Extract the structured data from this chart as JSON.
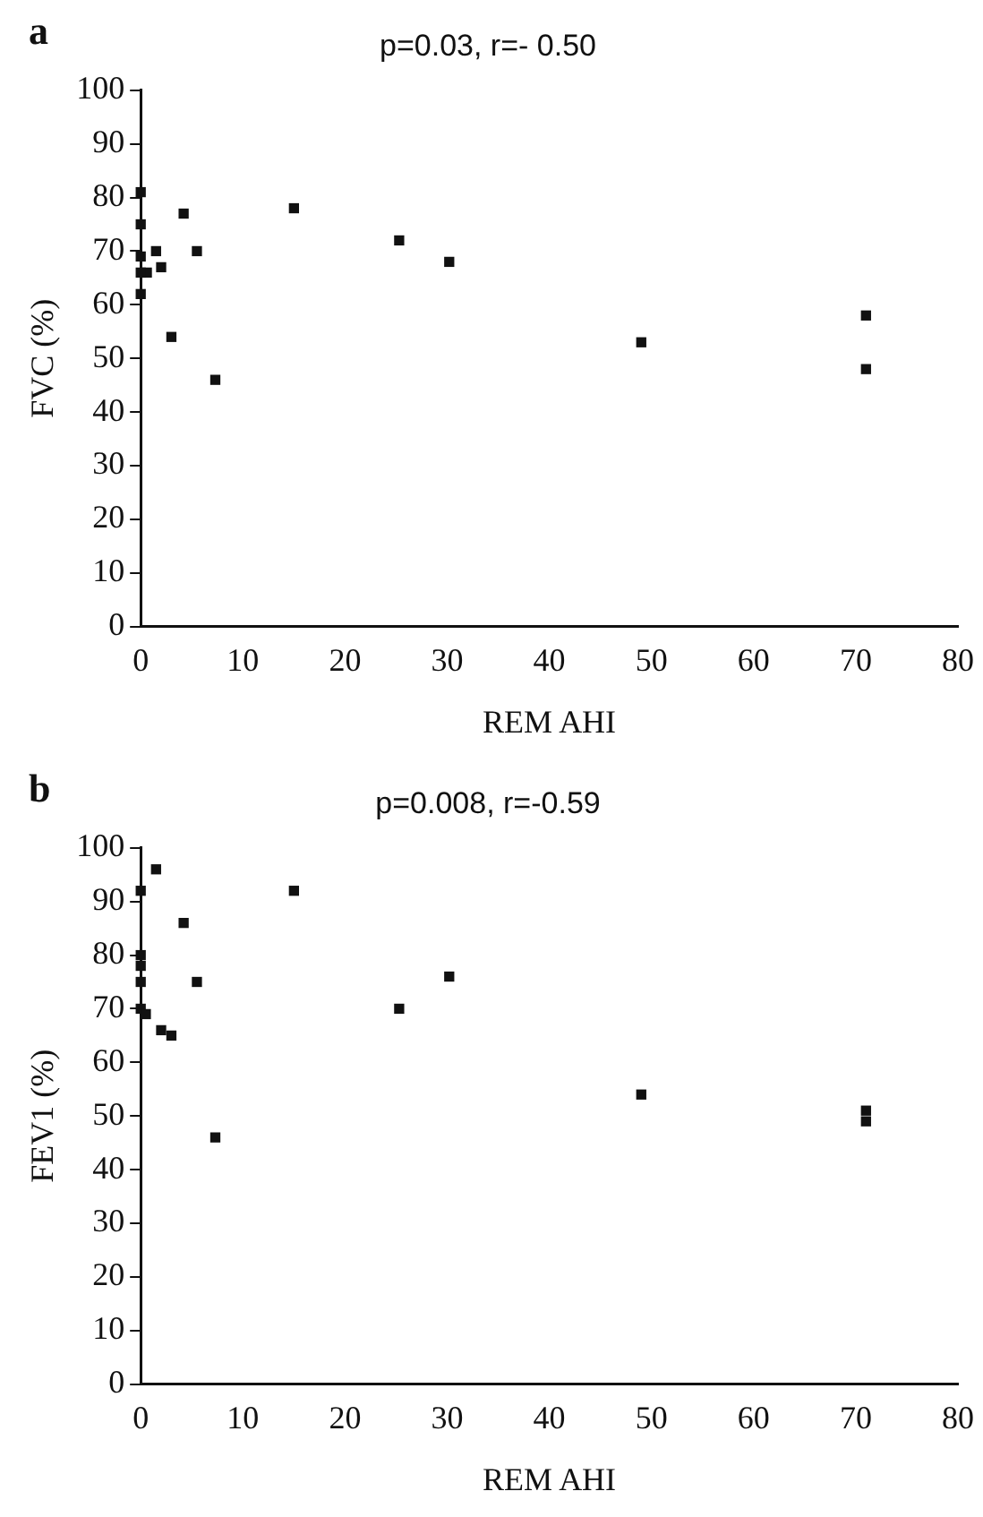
{
  "chart_data": [
    {
      "type": "scatter",
      "title": "p=0.03, r=- 0.50",
      "xlabel": "REM AHI",
      "ylabel": "FVC (%)",
      "annotations": [
        "a"
      ],
      "marker": "square",
      "grid": false,
      "legend": false,
      "xlim": [
        0,
        80
      ],
      "xticks": [
        0,
        10,
        20,
        30,
        40,
        50,
        60,
        70,
        80
      ],
      "ylim": [
        0,
        100
      ],
      "yticks": [
        0,
        10,
        20,
        30,
        40,
        50,
        60,
        70,
        80,
        90,
        100
      ],
      "series": [
        {
          "color": "#111111",
          "x": [
            0.6,
            0,
            0,
            0,
            0,
            0,
            1.5,
            2,
            3,
            4.2,
            5.5,
            7.3,
            15,
            25.3,
            30.2,
            49,
            71,
            71
          ],
          "values": [
            66,
            81,
            75,
            69,
            66,
            62,
            70,
            67,
            54,
            77,
            70,
            46,
            78,
            72,
            68,
            53,
            58,
            48
          ]
        }
      ]
    },
    {
      "type": "scatter",
      "title": "p=0.008, r=-0.59",
      "xlabel": "REM AHI",
      "ylabel": "FEV1 (%)",
      "annotations": [
        "b"
      ],
      "marker": "square",
      "grid": false,
      "legend": false,
      "xlim": [
        0,
        80
      ],
      "xticks": [
        0,
        10,
        20,
        30,
        40,
        50,
        60,
        70,
        80
      ],
      "ylim": [
        0,
        100
      ],
      "yticks": [
        0,
        10,
        20,
        30,
        40,
        50,
        60,
        70,
        80,
        90,
        100
      ],
      "series": [
        {
          "color": "#111111",
          "x": [
            0,
            1.5,
            4.2,
            15,
            0,
            0,
            0,
            5.5,
            30.2,
            0,
            0.5,
            25.3,
            2,
            3,
            7.3,
            49,
            71,
            71
          ],
          "values": [
            92,
            96,
            86,
            92,
            80,
            78,
            75,
            75,
            76,
            70,
            69,
            70,
            66,
            65,
            46,
            54,
            51,
            49
          ]
        }
      ]
    }
  ]
}
